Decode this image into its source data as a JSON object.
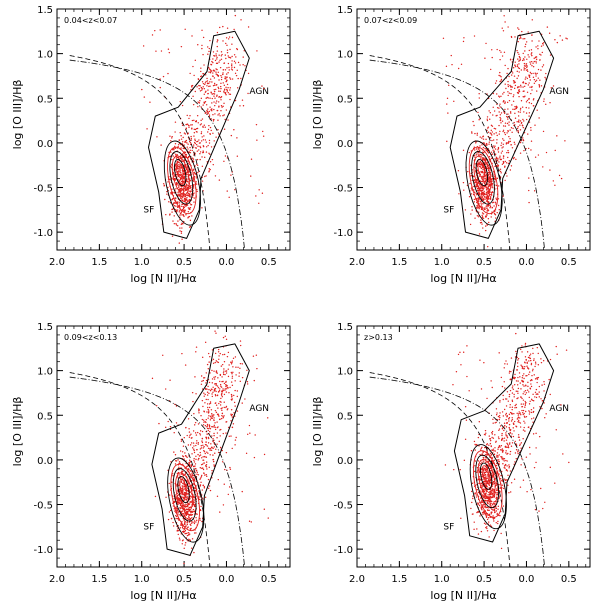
{
  "chart_data": [
    {
      "type": "scatter",
      "panel_label": "0.04<z<0.07",
      "xlabel": "log [N II]/Hα",
      "ylabel": "log [O III]/Hβ",
      "xlim": [
        2.0,
        -0.75
      ],
      "ylim": [
        -1.2,
        1.5
      ],
      "x_ticks": [
        "2.0",
        "1.5",
        "1.0",
        "0.5",
        "0.0",
        "0.5"
      ],
      "y_ticks": [
        "1.5",
        "1.0",
        "0.5",
        "0.0",
        "-0.5",
        "-1.0"
      ],
      "region_labels": [
        "AGN",
        "SF"
      ],
      "points_color": "#e0201e",
      "contour_color": "#000000",
      "core": {
        "x": 0.52,
        "y": -0.45
      },
      "agn_branch": [
        {
          "x": 0.4,
          "y": -0.1
        },
        {
          "x": 0.2,
          "y": 0.45
        },
        {
          "x": 0.05,
          "y": 0.85
        }
      ]
    },
    {
      "type": "scatter",
      "panel_label": "0.07<z<0.09",
      "xlabel": "log [N II]/Hα",
      "ylabel": "log [O III]/Hβ",
      "xlim": [
        2.0,
        -0.75
      ],
      "ylim": [
        -1.2,
        1.5
      ],
      "x_ticks": [
        "2.0",
        "1.5",
        "1.0",
        "0.5",
        "0.0",
        "0.5"
      ],
      "y_ticks": [
        "1.5",
        "1.0",
        "0.5",
        "0.0",
        "-0.5",
        "-1.0"
      ],
      "region_labels": [
        "AGN",
        "SF"
      ],
      "points_color": "#e0201e",
      "contour_color": "#000000",
      "core": {
        "x": 0.5,
        "y": -0.45
      },
      "agn_branch": [
        {
          "x": 0.35,
          "y": -0.05
        },
        {
          "x": 0.15,
          "y": 0.45
        },
        {
          "x": 0.0,
          "y": 0.85
        }
      ]
    },
    {
      "type": "scatter",
      "panel_label": "0.09<z<0.13",
      "xlabel": "log [N II]/Hα",
      "ylabel": "log [O III]/Hβ",
      "xlim": [
        2.0,
        -0.75
      ],
      "ylim": [
        -1.2,
        1.5
      ],
      "x_ticks": [
        "2.0",
        "1.5",
        "1.0",
        "0.5",
        "0.0",
        "0.5"
      ],
      "y_ticks": [
        "1.5",
        "1.0",
        "0.5",
        "0.0",
        "-0.5",
        "-1.0"
      ],
      "region_labels": [
        "AGN",
        "SF"
      ],
      "points_color": "#e0201e",
      "contour_color": "#000000",
      "core": {
        "x": 0.48,
        "y": -0.45
      },
      "agn_branch": [
        {
          "x": 0.3,
          "y": 0.0
        },
        {
          "x": 0.15,
          "y": 0.45
        },
        {
          "x": 0.05,
          "y": 0.9
        }
      ]
    },
    {
      "type": "scatter",
      "panel_label": "z>0.13",
      "xlabel": "log [N II]/Hα",
      "ylabel": "log [O III]/Hβ",
      "xlim": [
        2.0,
        -0.75
      ],
      "ylim": [
        -1.2,
        1.5
      ],
      "x_ticks": [
        "2.0",
        "1.5",
        "1.0",
        "0.5",
        "0.0",
        "0.5"
      ],
      "y_ticks": [
        "1.5",
        "1.0",
        "0.5",
        "0.0",
        "-0.5",
        "-1.0"
      ],
      "region_labels": [
        "AGN",
        "SF"
      ],
      "points_color": "#e0201e",
      "contour_color": "#000000",
      "core": {
        "x": 0.45,
        "y": -0.3
      },
      "agn_branch": [
        {
          "x": 0.3,
          "y": 0.05
        },
        {
          "x": 0.15,
          "y": 0.45
        },
        {
          "x": 0.0,
          "y": 0.9
        }
      ]
    }
  ]
}
